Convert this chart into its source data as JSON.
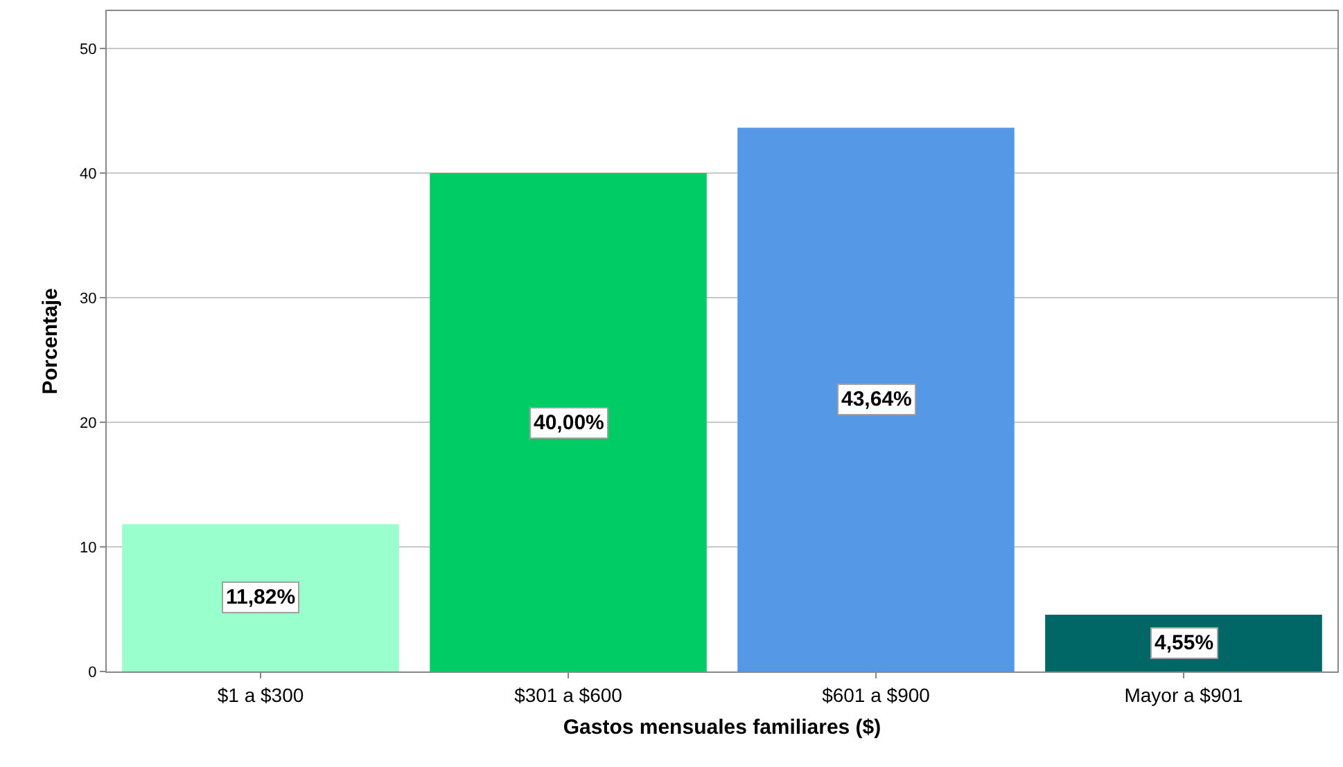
{
  "chart_data": {
    "type": "bar",
    "xlabel": "Gastos mensuales familiares ($)",
    "ylabel": "Porcentaje",
    "categories": [
      "$1 a $300",
      "$301 a $600",
      "$601 a $900",
      "Mayor a $901"
    ],
    "values": [
      11.82,
      40.0,
      43.64,
      4.55
    ],
    "colors": [
      "#99ffcc",
      "#00cc66",
      "#5599e6",
      "#006666"
    ],
    "value_labels": [
      "11,82%",
      "40,00%",
      "43,64%",
      "4,55%"
    ],
    "ylim": [
      0,
      53
    ],
    "yticks": [
      0,
      10,
      20,
      30,
      40,
      50
    ],
    "grid": "y"
  }
}
